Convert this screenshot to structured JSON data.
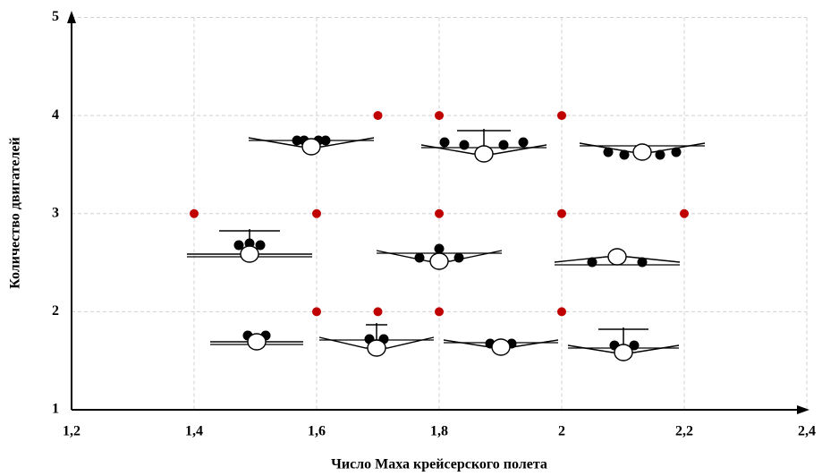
{
  "chart_data": {
    "type": "scatter",
    "x_label": "Число Маха крейсерского полета",
    "y_label": "Количество двигателей",
    "x": [
      1.7,
      1.8,
      2,
      1.4,
      1.6,
      1.8,
      2,
      2.2,
      1.6,
      1.7,
      1.8,
      2
    ],
    "values": [
      4,
      4,
      4,
      3,
      3,
      3,
      3,
      3,
      2,
      2,
      2,
      2
    ],
    "color": "#c00000",
    "xlim": [
      1.2,
      2.4
    ],
    "xticks": [
      {
        "value": 1.2,
        "label": "1,2"
      },
      {
        "value": 1.4,
        "label": "1,4"
      },
      {
        "value": 1.6,
        "label": "1,6"
      },
      {
        "value": 1.8,
        "label": "1,8"
      },
      2,
      {
        "value": 2.2,
        "label": "2,2"
      },
      {
        "value": 2.4,
        "label": "2,4"
      }
    ],
    "ylim": [
      1,
      5
    ],
    "yticks": [
      1,
      2,
      3,
      4,
      5
    ],
    "grid": true
  }
}
